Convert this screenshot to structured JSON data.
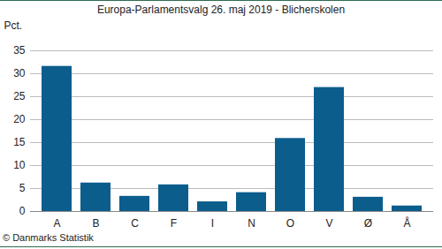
{
  "chart_data": {
    "type": "bar",
    "title": "Europa-Parlamentsvalg 26. maj 2019 - Blicherskolen",
    "y_label": "Pct.",
    "caption": "© Danmarks Statistik",
    "categories": [
      "A",
      "B",
      "C",
      "F",
      "I",
      "N",
      "O",
      "V",
      "Ø",
      "Å"
    ],
    "values": [
      31.6,
      6.2,
      3.3,
      5.8,
      2.1,
      4.1,
      15.9,
      27.0,
      3.1,
      1.2
    ],
    "color": "#0b5d8c",
    "ylim": [
      0,
      35
    ],
    "yticks": [
      0,
      5,
      10,
      15,
      20,
      25,
      30,
      35
    ],
    "grid": true
  }
}
